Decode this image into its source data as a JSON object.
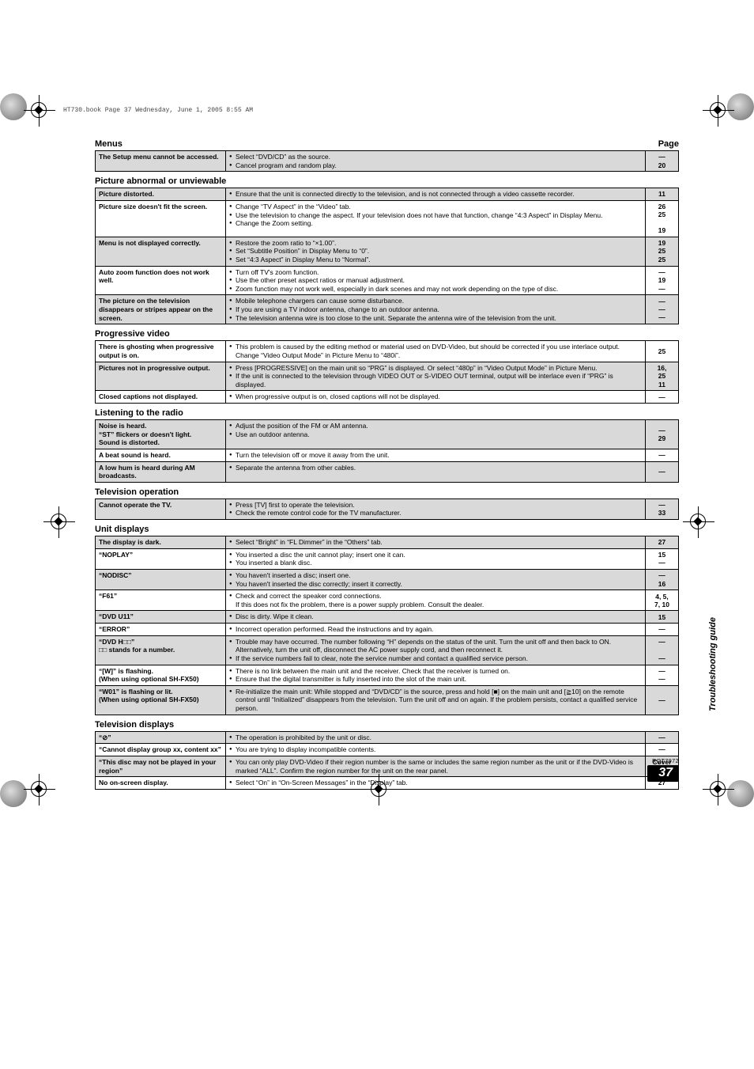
{
  "print_header": "HT730.book  Page 37  Wednesday, June 1, 2005  8:55 AM",
  "side_label": "Troubleshooting guide",
  "footer": {
    "rqt": "RQT7972",
    "page_number": "37"
  },
  "sections": [
    {
      "title": "Menus",
      "page_label": "Page",
      "rows": [
        {
          "shaded": true,
          "symptom": "The Setup menu cannot be accessed.",
          "remedies": [
            "Select “DVD/CD” as the source.",
            "Cancel program and random play."
          ],
          "pages": [
            "—",
            "20"
          ]
        }
      ]
    },
    {
      "title": "Picture abnormal or unviewable",
      "rows": [
        {
          "shaded": true,
          "symptom": "Picture distorted.",
          "remedies": [
            "Ensure that the unit is connected directly to the television, and is not connected through a video cassette recorder."
          ],
          "pages": [
            "11"
          ]
        },
        {
          "shaded": false,
          "symptom": "Picture size doesn't fit the screen.",
          "remedies": [
            "Change “TV Aspect” in the “Video” tab.",
            "Use the television to change the aspect. If your television does not have that function, change “4:3 Aspect” in Display Menu.",
            "Change the Zoom setting."
          ],
          "pages": [
            "26",
            "25",
            "",
            "19"
          ]
        },
        {
          "shaded": true,
          "symptom": "Menu is not displayed correctly.",
          "remedies": [
            "Restore the zoom ratio to “×1.00”.",
            "Set “Subtitle Position” in Display Menu to “0”.",
            "Set “4:3 Aspect” in Display Menu to “Normal”."
          ],
          "pages": [
            "19",
            "25",
            "25"
          ]
        },
        {
          "shaded": false,
          "symptom": "Auto zoom function does not work well.",
          "remedies": [
            "Turn off TV's zoom function.",
            "Use the other preset aspect ratios or manual adjustment.",
            "Zoom function may not work well, especially in dark scenes and may not work depending on the type of disc."
          ],
          "pages": [
            "—",
            "19",
            "—"
          ]
        },
        {
          "shaded": true,
          "symptom": "The picture on the television disappears or stripes appear on the screen.",
          "remedies": [
            "Mobile telephone chargers can cause some disturbance.",
            "If you are using a TV indoor antenna, change to an outdoor antenna.",
            "The television antenna wire is too close to the unit. Separate the antenna wire of the television from the unit."
          ],
          "pages": [
            "—",
            "—",
            "—"
          ]
        }
      ]
    },
    {
      "title": "Progressive video",
      "rows": [
        {
          "shaded": false,
          "symptom": "There is ghosting when progressive output is on.",
          "remedies": [
            "This problem is caused by the editing method or material used on DVD-Video, but should be corrected if you use interlace output. Change “Video Output Mode” in Picture Menu to “480i”."
          ],
          "pages": [
            "25"
          ]
        },
        {
          "shaded": true,
          "symptom": "Pictures not in progressive output.",
          "remedies": [
            "Press [PROGRESSIVE] on the main unit so “PRG” is displayed. Or select “480p” in “Video Output Mode” in Picture Menu.",
            "If the unit is connected to the television through VIDEO OUT or S-VIDEO OUT terminal, output will be interlace even if “PRG” is displayed."
          ],
          "pages": [
            "16,",
            "25",
            "11"
          ]
        },
        {
          "shaded": false,
          "symptom": "Closed captions not displayed.",
          "remedies": [
            "When progressive output is on, closed captions will not be displayed."
          ],
          "pages": [
            "—"
          ]
        }
      ]
    },
    {
      "title": "Listening to the radio",
      "rows": [
        {
          "shaded": true,
          "symptom": "Noise is heard.\n“ST” flickers or doesn't light.\nSound is distorted.",
          "remedies": [
            "Adjust the position of the FM or AM antenna.",
            "Use an outdoor antenna."
          ],
          "pages": [
            "—",
            "29"
          ]
        },
        {
          "shaded": false,
          "symptom": "A beat sound is heard.",
          "remedies": [
            "Turn the television off or move it away from the unit."
          ],
          "pages": [
            "—"
          ]
        },
        {
          "shaded": true,
          "symptom": "A low hum is heard during AM broadcasts.",
          "remedies": [
            "Separate the antenna from other cables."
          ],
          "pages": [
            "—"
          ]
        }
      ]
    },
    {
      "title": "Television operation",
      "rows": [
        {
          "shaded": true,
          "symptom": "Cannot operate the TV.",
          "remedies": [
            "Press [TV] first to operate the television.",
            "Check the remote control code for the TV manufacturer."
          ],
          "pages": [
            "—",
            "33"
          ]
        }
      ]
    },
    {
      "title": "Unit displays",
      "rows": [
        {
          "shaded": true,
          "symptom": "The display is dark.",
          "remedies": [
            "Select “Bright” in “FL Dimmer” in the “Others” tab."
          ],
          "pages": [
            "27"
          ]
        },
        {
          "shaded": false,
          "symptom": "“NOPLAY”",
          "remedies": [
            "You inserted a disc the unit cannot play; insert one it can.",
            "You inserted a blank disc."
          ],
          "pages": [
            "15",
            "—"
          ]
        },
        {
          "shaded": true,
          "symptom": "“NODISC”",
          "remedies": [
            "You haven't inserted a disc; insert one.",
            "You haven't inserted the disc correctly; insert it correctly."
          ],
          "pages": [
            "—",
            "16"
          ]
        },
        {
          "shaded": false,
          "symptom": "“F61”",
          "remedies": [
            "Check and correct the speaker cord connections.\nIf this does not fix the problem, there is a power supply problem. Consult the dealer."
          ],
          "pages": [
            "4, 5,",
            "7, 10"
          ]
        },
        {
          "shaded": true,
          "symptom": "“DVD U11”",
          "remedies": [
            "Disc is dirty. Wipe it clean."
          ],
          "pages": [
            "15"
          ]
        },
        {
          "shaded": false,
          "symptom": "“ERROR”",
          "remedies": [
            "Incorrect operation performed. Read the instructions and try again."
          ],
          "pages": [
            "—"
          ]
        },
        {
          "shaded": true,
          "symptom": "“DVD H□□”\n□□ stands for a number.",
          "remedies": [
            "Trouble may have occurred. The number following “H” depends on the status of the unit. Turn the unit off and then back to ON. Alternatively, turn the unit off, disconnect the AC power supply cord, and then reconnect it.",
            "If the service numbers fail to clear, note the service number and contact a qualified service person."
          ],
          "pages": [
            "—",
            "",
            "—"
          ]
        },
        {
          "shaded": false,
          "symptom": "“[W]” is flashing.\n(When using optional SH-FX50)",
          "remedies": [
            "There is no link between the main unit and the receiver. Check that the receiver is turned on.",
            "Ensure that the digital transmitter is fully inserted into the slot of the main unit."
          ],
          "pages": [
            "—",
            "—"
          ]
        },
        {
          "shaded": true,
          "symptom": "“W01” is flashing or lit.\n(When using optional SH-FX50)",
          "remedies": [
            "Re-initialize the main unit: While stopped and “DVD/CD” is the source, press and hold [■] on the main unit and [≧10] on the remote control until “Initialized” disappears from the television. Turn the unit off and on again. If the problem persists, contact a qualified service person."
          ],
          "pages": [
            "—"
          ]
        }
      ]
    },
    {
      "title": "Television displays",
      "rows": [
        {
          "shaded": true,
          "symptom": "“⊘”",
          "remedies": [
            "The operation is prohibited by the unit or disc."
          ],
          "pages": [
            "—"
          ]
        },
        {
          "shaded": false,
          "symptom": "“Cannot display group xx, content xx”",
          "remedies": [
            "You are trying to display incompatible contents."
          ],
          "pages": [
            "—"
          ]
        },
        {
          "shaded": true,
          "symptom": "“This disc may not be played in your region”",
          "remedies": [
            "You can only play DVD-Video if their region number is the same or includes the same region number as the unit or if the DVD-Video is marked “ALL”. Confirm the region number for the unit on the rear panel."
          ],
          "pages": [
            "Cover",
            "page"
          ]
        },
        {
          "shaded": false,
          "symptom": "No on-screen display.",
          "remedies": [
            "Select “On” in “On-Screen Messages” in the “Display” tab."
          ],
          "pages": [
            "27"
          ]
        }
      ]
    }
  ]
}
